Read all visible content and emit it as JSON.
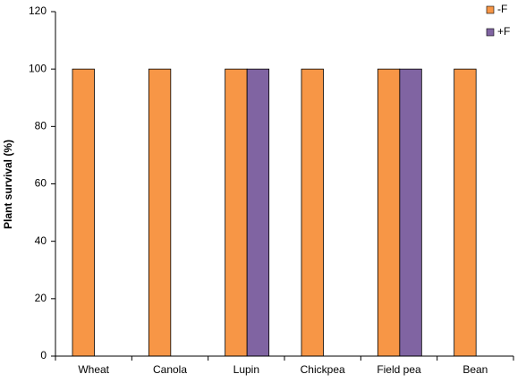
{
  "chart_data": {
    "type": "bar",
    "ylabel": "Plant survival (%)",
    "categories": [
      "Wheat",
      "Canola",
      "Lupin",
      "Chickpea",
      "Field pea",
      "Bean"
    ],
    "series": [
      {
        "name": "-F",
        "color": "#f79646",
        "values": [
          100,
          100,
          100,
          100,
          100,
          100
        ]
      },
      {
        "name": "+F",
        "color": "#8064a2",
        "values": [
          null,
          null,
          100,
          null,
          100,
          null
        ]
      }
    ],
    "ylim": [
      0,
      120
    ],
    "yticks": [
      0,
      20,
      40,
      60,
      80,
      100,
      120
    ],
    "grid": false,
    "legend": "top-right"
  }
}
